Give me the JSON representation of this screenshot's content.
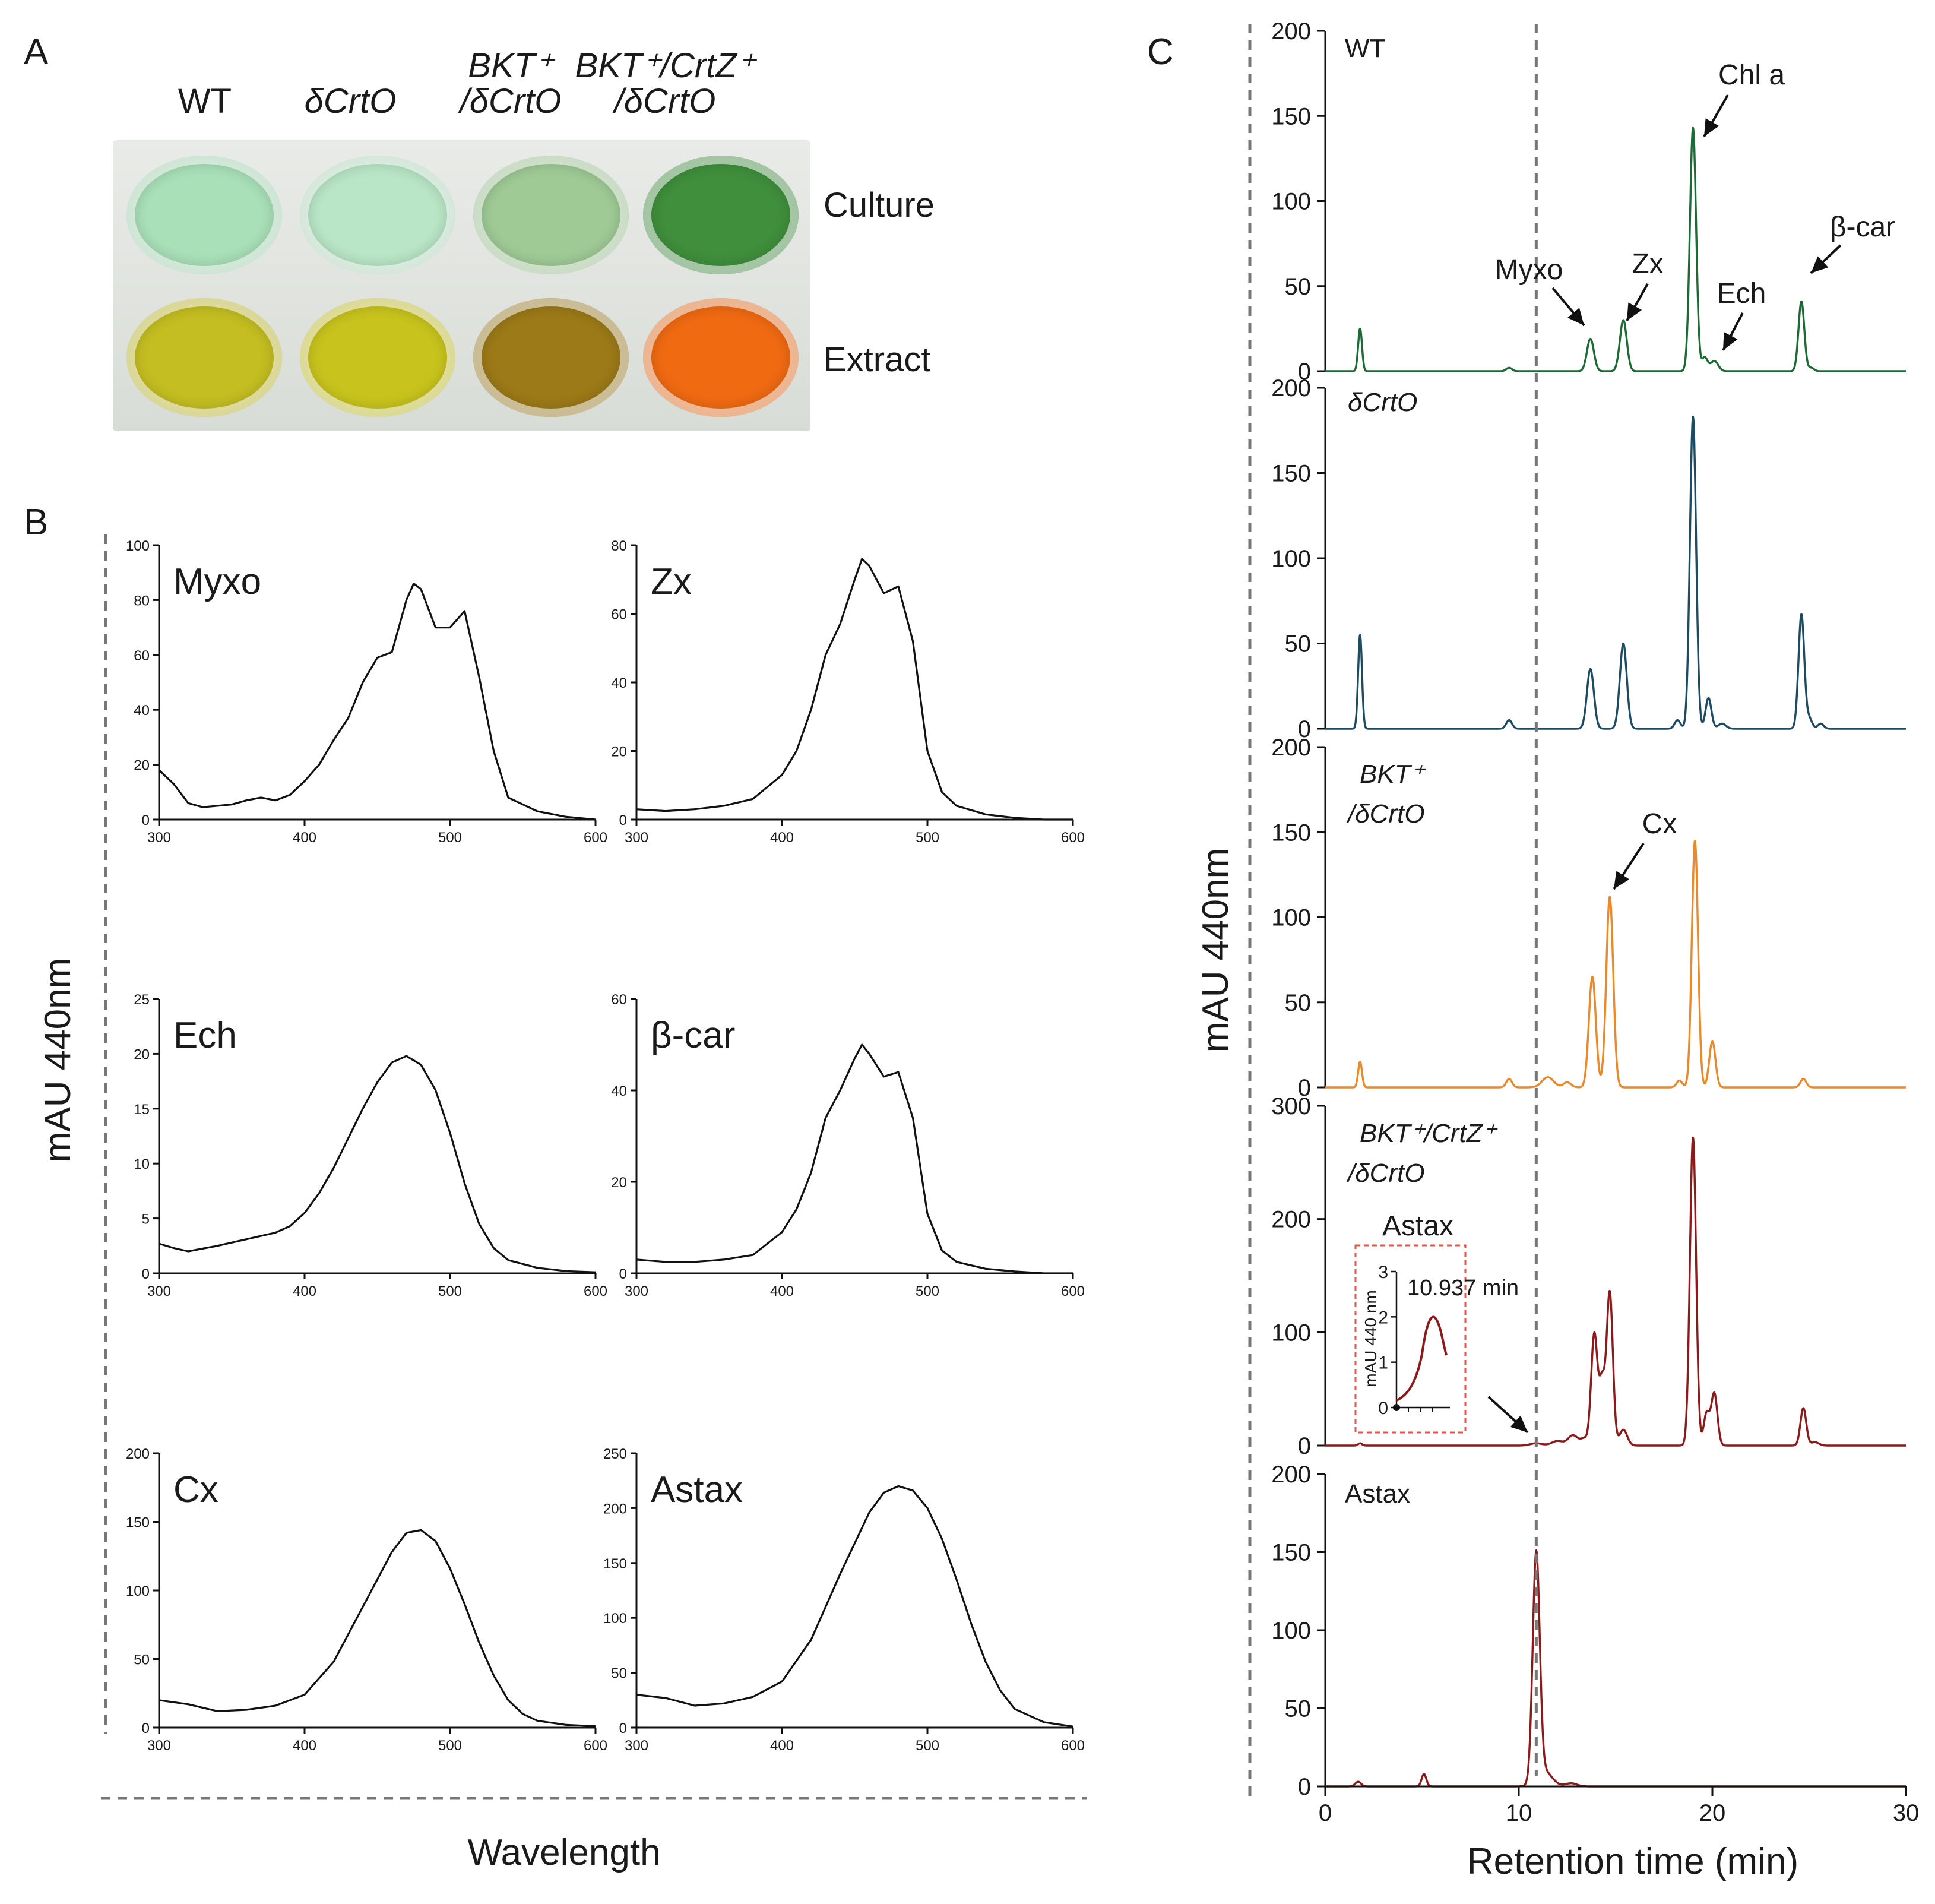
{
  "panelA": {
    "letter": "A",
    "strains": [
      {
        "line1": "WT",
        "line2": ""
      },
      {
        "line1": "δCrtO",
        "line2": ""
      },
      {
        "line1": "BKT⁺",
        "line2": "/δCrtO"
      },
      {
        "line1": "BKT⁺/CrtZ⁺",
        "line2": "/δCrtO"
      }
    ],
    "row_labels": [
      "Culture",
      "Extract"
    ],
    "culture_colors": [
      "#a9e0b8",
      "#b9e6c6",
      "#9fca95",
      "#3f8f3c"
    ],
    "extract_colors": [
      "#c4be22",
      "#c8c41d",
      "#9c7a18",
      "#f06a12"
    ]
  },
  "panelB": {
    "letter": "B",
    "ylabel": "mAU 440nm",
    "xlabel": "Wavelength"
  },
  "panelC": {
    "letter": "C",
    "ylabel": "mAU 440nm",
    "xlabel": "Retention time (min)",
    "inset": {
      "title": "Astax",
      "ylabel": "mAU 440 nm",
      "annotation": "10.937 min",
      "yticks": [
        "0",
        "1",
        "2",
        "3"
      ]
    }
  },
  "chart_data": [
    {
      "type": "line",
      "panel": "B",
      "title": "Myxo",
      "xlabel": "Wavelength",
      "ylabel": "mAU 440nm",
      "xlim": [
        300,
        600
      ],
      "ylim": [
        0,
        100
      ],
      "xticks": [
        300,
        400,
        500,
        600
      ],
      "yticks": [
        0,
        20,
        40,
        60,
        80,
        100
      ],
      "color": "#111111",
      "x": [
        300,
        310,
        320,
        330,
        340,
        350,
        360,
        370,
        380,
        390,
        400,
        410,
        420,
        430,
        440,
        450,
        460,
        470,
        475,
        480,
        490,
        500,
        510,
        520,
        530,
        540,
        560,
        580,
        600
      ],
      "y": [
        18,
        13,
        6,
        4.5,
        5,
        5.5,
        7,
        8,
        7,
        9,
        14,
        20,
        29,
        37,
        50,
        59,
        61,
        80,
        86,
        84,
        70,
        70,
        76,
        52,
        25,
        8,
        3,
        1,
        0
      ]
    },
    {
      "type": "line",
      "panel": "B",
      "title": "Zx",
      "xlabel": "Wavelength",
      "ylabel": "mAU 440nm",
      "xlim": [
        300,
        600
      ],
      "ylim": [
        0,
        80
      ],
      "xticks": [
        300,
        400,
        500,
        600
      ],
      "yticks": [
        0,
        20,
        40,
        60,
        80
      ],
      "color": "#111111",
      "x": [
        300,
        320,
        340,
        360,
        380,
        400,
        410,
        420,
        430,
        440,
        450,
        455,
        460,
        470,
        480,
        490,
        500,
        510,
        520,
        540,
        560,
        580,
        600
      ],
      "y": [
        3,
        2.5,
        3,
        4,
        6,
        13,
        20,
        32,
        48,
        57,
        70,
        76,
        74,
        66,
        68,
        52,
        20,
        8,
        4,
        1.5,
        0.5,
        0,
        0
      ]
    },
    {
      "type": "line",
      "panel": "B",
      "title": "Ech",
      "xlabel": "Wavelength",
      "ylabel": "mAU 440nm",
      "xlim": [
        300,
        600
      ],
      "ylim": [
        0,
        25
      ],
      "xticks": [
        300,
        400,
        500,
        600
      ],
      "yticks": [
        0,
        5,
        10,
        15,
        20,
        25
      ],
      "color": "#111111",
      "x": [
        300,
        310,
        320,
        340,
        360,
        380,
        390,
        400,
        410,
        420,
        430,
        440,
        450,
        460,
        470,
        480,
        490,
        500,
        510,
        520,
        530,
        540,
        560,
        580,
        600
      ],
      "y": [
        2.7,
        2.3,
        2.0,
        2.5,
        3.1,
        3.7,
        4.3,
        5.5,
        7.3,
        9.6,
        12.3,
        15.0,
        17.4,
        19.2,
        19.8,
        19.0,
        16.7,
        12.8,
        8.2,
        4.5,
        2.3,
        1.2,
        0.5,
        0.2,
        0.1
      ]
    },
    {
      "type": "line",
      "panel": "B",
      "title": "β-car",
      "xlabel": "Wavelength",
      "ylabel": "mAU 440nm",
      "xlim": [
        300,
        600
      ],
      "ylim": [
        0,
        60
      ],
      "xticks": [
        300,
        400,
        500,
        600
      ],
      "yticks": [
        0,
        20,
        40,
        60
      ],
      "color": "#111111",
      "x": [
        300,
        320,
        340,
        360,
        380,
        400,
        410,
        420,
        430,
        440,
        450,
        455,
        460,
        470,
        480,
        490,
        500,
        510,
        520,
        540,
        560,
        580,
        600
      ],
      "y": [
        3,
        2.5,
        2.5,
        3,
        4,
        9,
        14,
        22,
        34,
        40,
        47,
        50,
        48,
        43,
        44,
        34,
        13,
        5,
        2.5,
        1,
        0.4,
        0,
        0
      ]
    },
    {
      "type": "line",
      "panel": "B",
      "title": "Cx",
      "xlabel": "Wavelength",
      "ylabel": "mAU 440nm",
      "xlim": [
        300,
        600
      ],
      "ylim": [
        0,
        200
      ],
      "xticks": [
        300,
        400,
        500,
        600
      ],
      "yticks": [
        0,
        50,
        100,
        150,
        200
      ],
      "color": "#111111",
      "x": [
        300,
        320,
        340,
        360,
        380,
        400,
        420,
        440,
        460,
        470,
        480,
        490,
        500,
        510,
        520,
        530,
        540,
        550,
        560,
        580,
        600
      ],
      "y": [
        20,
        17,
        12,
        13,
        16,
        24,
        48,
        88,
        128,
        142,
        144,
        136,
        116,
        90,
        62,
        38,
        20,
        10,
        5,
        2,
        1
      ]
    },
    {
      "type": "line",
      "panel": "B",
      "title": "Astax",
      "xlabel": "Wavelength",
      "ylabel": "mAU 440nm",
      "xlim": [
        300,
        600
      ],
      "ylim": [
        0,
        250
      ],
      "xticks": [
        300,
        400,
        500,
        600
      ],
      "yticks": [
        0,
        50,
        100,
        150,
        200,
        250
      ],
      "color": "#111111",
      "x": [
        300,
        320,
        340,
        360,
        380,
        400,
        420,
        440,
        460,
        470,
        480,
        490,
        500,
        510,
        520,
        530,
        540,
        550,
        560,
        580,
        600
      ],
      "y": [
        30,
        27,
        20,
        22,
        28,
        42,
        80,
        140,
        196,
        214,
        220,
        216,
        200,
        172,
        135,
        95,
        60,
        34,
        17,
        5,
        1
      ]
    },
    {
      "type": "line",
      "panel": "C",
      "title": "WT",
      "xlim": [
        0,
        30
      ],
      "ylim": [
        0,
        200
      ],
      "yticks": [
        0,
        50,
        100,
        150,
        200
      ],
      "color": "#1e6a35",
      "annotations": [
        {
          "text": "Myxo",
          "x": 13.7,
          "y": 20
        },
        {
          "text": "Zx",
          "x": 15.4,
          "y": 30
        },
        {
          "text": "Chl a",
          "x": 19.0,
          "y": 142
        },
        {
          "text": "Ech",
          "x": 20.5,
          "y": 8
        },
        {
          "text": "β-car",
          "x": 24.6,
          "y": 40
        }
      ],
      "peaks": [
        [
          1.8,
          25,
          0.1
        ],
        [
          9.5,
          2,
          0.15
        ],
        [
          13.7,
          19,
          0.18
        ],
        [
          15.4,
          30,
          0.18
        ],
        [
          19.0,
          143,
          0.16
        ],
        [
          19.6,
          8,
          0.15
        ],
        [
          20.1,
          6,
          0.2
        ],
        [
          24.6,
          41,
          0.15
        ],
        [
          25.1,
          2,
          0.15
        ]
      ]
    },
    {
      "type": "line",
      "panel": "C",
      "title": "δCrtO",
      "xlim": [
        0,
        30
      ],
      "ylim": [
        0,
        200
      ],
      "yticks": [
        0,
        50,
        100,
        150,
        200
      ],
      "color": "#1d4b62",
      "annotations": [],
      "peaks": [
        [
          1.8,
          55,
          0.1
        ],
        [
          9.5,
          5,
          0.15
        ],
        [
          13.7,
          35,
          0.18
        ],
        [
          15.4,
          50,
          0.18
        ],
        [
          18.2,
          5,
          0.15
        ],
        [
          19.0,
          183,
          0.16
        ],
        [
          19.8,
          18,
          0.15
        ],
        [
          20.5,
          3,
          0.2
        ],
        [
          24.6,
          67,
          0.15
        ],
        [
          25.0,
          6,
          0.15
        ],
        [
          25.6,
          3,
          0.15
        ]
      ]
    },
    {
      "type": "line",
      "panel": "C",
      "title": "BKT⁺/δCrtO",
      "xlim": [
        0,
        30
      ],
      "ylim": [
        0,
        200
      ],
      "yticks": [
        0,
        50,
        100,
        150,
        200
      ],
      "color": "#e8892a",
      "annotations": [
        {
          "text": "Cx",
          "x": 14.7,
          "y": 112
        }
      ],
      "peaks": [
        [
          1.8,
          15,
          0.1
        ],
        [
          9.5,
          5,
          0.15
        ],
        [
          11.5,
          6,
          0.3
        ],
        [
          12.5,
          3,
          0.2
        ],
        [
          13.8,
          65,
          0.18
        ],
        [
          14.7,
          112,
          0.18
        ],
        [
          18.3,
          4,
          0.15
        ],
        [
          19.1,
          145,
          0.16
        ],
        [
          20.0,
          27,
          0.16
        ],
        [
          24.7,
          5,
          0.15
        ]
      ]
    },
    {
      "type": "line",
      "panel": "C",
      "title": "BKT⁺/CrtZ⁺/δCrtO",
      "xlim": [
        0,
        30
      ],
      "ylim": [
        0,
        300
      ],
      "yticks": [
        0,
        100,
        200,
        300
      ],
      "color": "#8b1a1a",
      "annotations": [
        {
          "text": "Astax",
          "x": 10.9,
          "y": 2
        }
      ],
      "peaks": [
        [
          1.8,
          2,
          0.1
        ],
        [
          10.9,
          2,
          0.3
        ],
        [
          12.0,
          4,
          0.3
        ],
        [
          12.8,
          9,
          0.25
        ],
        [
          13.4,
          6,
          0.2
        ],
        [
          13.9,
          98,
          0.16
        ],
        [
          14.3,
          55,
          0.15
        ],
        [
          14.7,
          135,
          0.16
        ],
        [
          15.4,
          14,
          0.2
        ],
        [
          19.0,
          272,
          0.16
        ],
        [
          19.7,
          28,
          0.15
        ],
        [
          20.1,
          46,
          0.16
        ],
        [
          24.7,
          33,
          0.15
        ],
        [
          25.3,
          3,
          0.2
        ]
      ]
    },
    {
      "type": "line",
      "panel": "C",
      "title": "Astax",
      "xlim": [
        0,
        30
      ],
      "ylim": [
        0,
        200
      ],
      "yticks": [
        0,
        50,
        100,
        150,
        200
      ],
      "xticks": [
        0,
        10,
        20,
        30
      ],
      "color": "#8b1a1a",
      "annotations": [],
      "peaks": [
        [
          1.7,
          3,
          0.15
        ],
        [
          5.1,
          8,
          0.12
        ],
        [
          10.9,
          145,
          0.18
        ],
        [
          11.3,
          10,
          0.4
        ],
        [
          12.7,
          2,
          0.3
        ]
      ]
    }
  ]
}
